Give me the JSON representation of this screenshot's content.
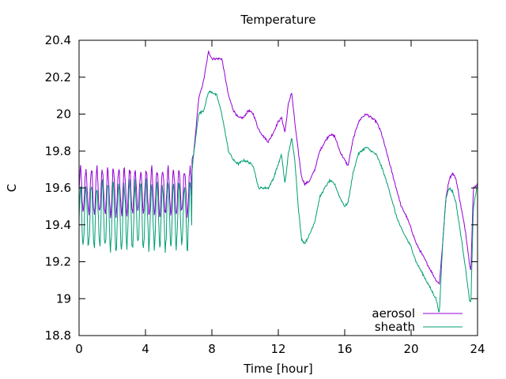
{
  "chart_data": {
    "type": "line",
    "title": "Temperature",
    "xlabel": "Time [hour]",
    "ylabel": "C",
    "xlim": [
      0,
      24
    ],
    "ylim": [
      18.8,
      20.4
    ],
    "xticks": [
      0,
      4,
      8,
      12,
      16,
      20,
      24
    ],
    "yticks": [
      18.8,
      19,
      19.2,
      19.4,
      19.6,
      19.8,
      20,
      20.2,
      20.4
    ],
    "ytick_labels": [
      "18.8",
      "19",
      "19.2",
      "19.4",
      "19.6",
      "19.8",
      "20",
      "20.2",
      "20.4"
    ],
    "grid": false,
    "legend_position": "bottom-right",
    "series": [
      {
        "name": "aerosol",
        "color": "#9400d3",
        "points": [
          [
            0,
            19.55
          ],
          [
            0.25,
            19.7
          ],
          [
            0.5,
            19.72
          ],
          [
            1,
            19.68
          ],
          [
            1.5,
            19.7
          ],
          [
            2,
            19.7
          ],
          [
            2.5,
            19.7
          ],
          [
            3,
            19.7
          ],
          [
            3.5,
            19.7
          ],
          [
            4,
            19.7
          ],
          [
            4.5,
            19.7
          ],
          [
            5,
            19.7
          ],
          [
            5.5,
            19.7
          ],
          [
            6,
            19.7
          ],
          [
            6.6,
            19.7
          ],
          [
            6.9,
            19.78
          ],
          [
            7.2,
            20.08
          ],
          [
            7.5,
            20.18
          ],
          [
            7.8,
            20.34
          ],
          [
            8.0,
            20.3
          ],
          [
            8.3,
            20.3
          ],
          [
            8.6,
            20.3
          ],
          [
            8.8,
            20.2
          ],
          [
            9.0,
            20.1
          ],
          [
            9.3,
            20.02
          ],
          [
            9.6,
            19.98
          ],
          [
            9.9,
            19.98
          ],
          [
            10.2,
            20.02
          ],
          [
            10.5,
            20.0
          ],
          [
            10.8,
            19.92
          ],
          [
            11.1,
            19.88
          ],
          [
            11.4,
            19.85
          ],
          [
            11.7,
            19.9
          ],
          [
            12.0,
            19.96
          ],
          [
            12.2,
            19.98
          ],
          [
            12.4,
            19.9
          ],
          [
            12.6,
            20.05
          ],
          [
            12.8,
            20.12
          ],
          [
            13.0,
            19.95
          ],
          [
            13.2,
            19.8
          ],
          [
            13.4,
            19.66
          ],
          [
            13.6,
            19.62
          ],
          [
            13.9,
            19.64
          ],
          [
            14.2,
            19.7
          ],
          [
            14.5,
            19.8
          ],
          [
            14.8,
            19.85
          ],
          [
            15.1,
            19.89
          ],
          [
            15.4,
            19.88
          ],
          [
            15.7,
            19.8
          ],
          [
            16.0,
            19.75
          ],
          [
            16.2,
            19.72
          ],
          [
            16.5,
            19.86
          ],
          [
            16.8,
            19.95
          ],
          [
            17.0,
            19.98
          ],
          [
            17.3,
            20.0
          ],
          [
            17.6,
            19.98
          ],
          [
            17.9,
            19.96
          ],
          [
            18.2,
            19.9
          ],
          [
            18.5,
            19.8
          ],
          [
            18.8,
            19.7
          ],
          [
            19.1,
            19.6
          ],
          [
            19.4,
            19.5
          ],
          [
            19.7,
            19.45
          ],
          [
            20.0,
            19.38
          ],
          [
            20.3,
            19.3
          ],
          [
            20.6,
            19.25
          ],
          [
            20.9,
            19.2
          ],
          [
            21.2,
            19.15
          ],
          [
            21.5,
            19.1
          ],
          [
            21.7,
            19.08
          ],
          [
            21.9,
            19.3
          ],
          [
            22.1,
            19.55
          ],
          [
            22.3,
            19.65
          ],
          [
            22.5,
            19.68
          ],
          [
            22.7,
            19.65
          ],
          [
            22.9,
            19.55
          ],
          [
            23.1,
            19.45
          ],
          [
            23.3,
            19.35
          ],
          [
            23.5,
            19.2
          ],
          [
            23.6,
            19.15
          ],
          [
            23.75,
            19.6
          ],
          [
            24,
            19.62
          ]
        ]
      },
      {
        "name": "sheath",
        "color": "#009e73",
        "points": [
          [
            0,
            19.5
          ],
          [
            0.5,
            19.45
          ],
          [
            1,
            19.4
          ],
          [
            1.5,
            19.38
          ],
          [
            2,
            19.4
          ],
          [
            2.5,
            19.38
          ],
          [
            3,
            19.4
          ],
          [
            3.5,
            19.4
          ],
          [
            4,
            19.42
          ],
          [
            4.5,
            19.4
          ],
          [
            5,
            19.42
          ],
          [
            5.5,
            19.4
          ],
          [
            6,
            19.45
          ],
          [
            6.6,
            19.5
          ],
          [
            6.9,
            19.78
          ],
          [
            7.2,
            20.0
          ],
          [
            7.5,
            20.02
          ],
          [
            7.8,
            20.12
          ],
          [
            8.0,
            20.12
          ],
          [
            8.3,
            20.1
          ],
          [
            8.6,
            20.0
          ],
          [
            8.8,
            19.9
          ],
          [
            9.0,
            19.8
          ],
          [
            9.3,
            19.75
          ],
          [
            9.6,
            19.73
          ],
          [
            9.9,
            19.75
          ],
          [
            10.2,
            19.74
          ],
          [
            10.5,
            19.72
          ],
          [
            10.8,
            19.6
          ],
          [
            11.1,
            19.6
          ],
          [
            11.4,
            19.6
          ],
          [
            11.7,
            19.65
          ],
          [
            12.0,
            19.73
          ],
          [
            12.2,
            19.78
          ],
          [
            12.4,
            19.62
          ],
          [
            12.6,
            19.78
          ],
          [
            12.8,
            19.87
          ],
          [
            13.0,
            19.75
          ],
          [
            13.2,
            19.5
          ],
          [
            13.4,
            19.32
          ],
          [
            13.6,
            19.3
          ],
          [
            13.9,
            19.35
          ],
          [
            14.2,
            19.42
          ],
          [
            14.5,
            19.55
          ],
          [
            14.8,
            19.6
          ],
          [
            15.1,
            19.64
          ],
          [
            15.4,
            19.62
          ],
          [
            15.7,
            19.55
          ],
          [
            16.0,
            19.5
          ],
          [
            16.2,
            19.52
          ],
          [
            16.5,
            19.68
          ],
          [
            16.8,
            19.78
          ],
          [
            17.0,
            19.8
          ],
          [
            17.3,
            19.82
          ],
          [
            17.6,
            19.8
          ],
          [
            17.9,
            19.78
          ],
          [
            18.2,
            19.72
          ],
          [
            18.5,
            19.64
          ],
          [
            18.8,
            19.55
          ],
          [
            19.1,
            19.45
          ],
          [
            19.4,
            19.38
          ],
          [
            19.7,
            19.33
          ],
          [
            20.0,
            19.28
          ],
          [
            20.3,
            19.2
          ],
          [
            20.6,
            19.15
          ],
          [
            20.9,
            19.1
          ],
          [
            21.2,
            19.05
          ],
          [
            21.5,
            19.0
          ],
          [
            21.7,
            18.92
          ],
          [
            21.9,
            19.3
          ],
          [
            22.1,
            19.55
          ],
          [
            22.3,
            19.6
          ],
          [
            22.5,
            19.58
          ],
          [
            22.7,
            19.52
          ],
          [
            22.9,
            19.4
          ],
          [
            23.1,
            19.28
          ],
          [
            23.3,
            19.15
          ],
          [
            23.5,
            19.0
          ],
          [
            23.6,
            18.97
          ],
          [
            23.75,
            19.5
          ],
          [
            24,
            19.62
          ]
        ]
      }
    ]
  }
}
